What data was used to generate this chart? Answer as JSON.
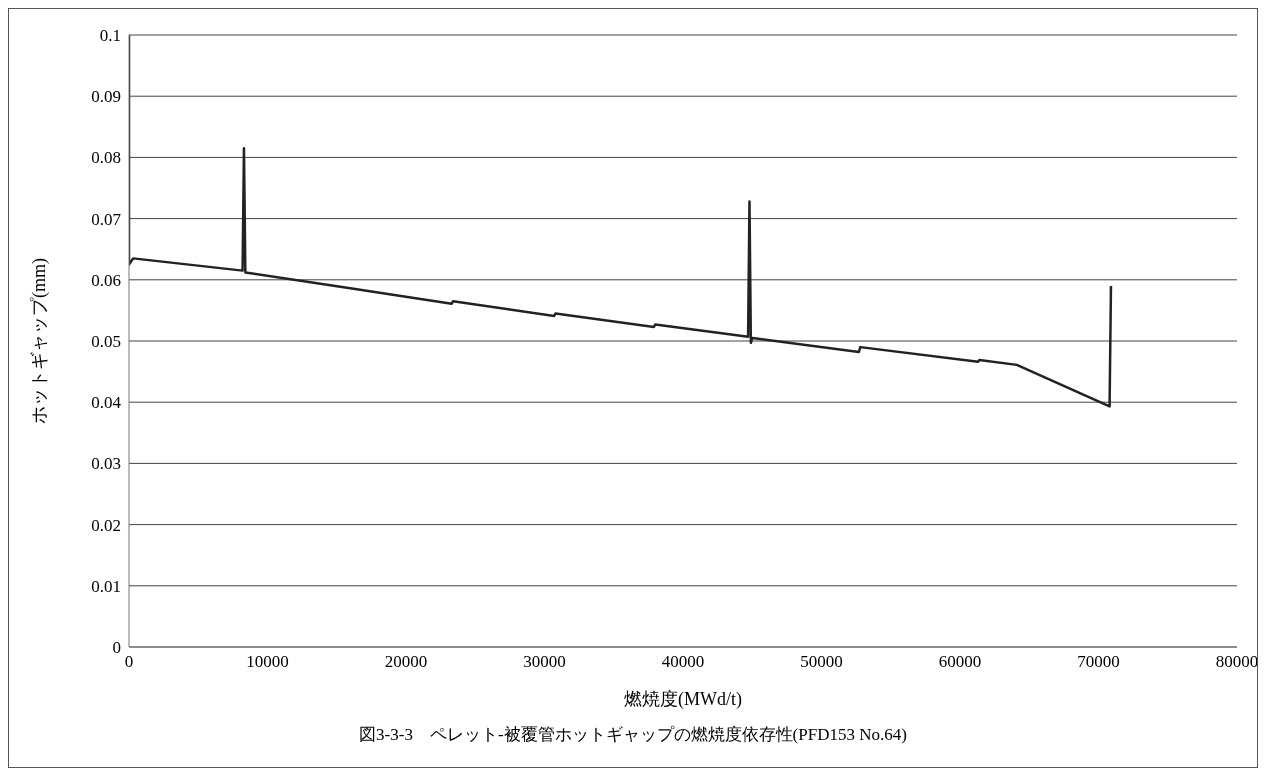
{
  "chart_data": {
    "type": "line",
    "xlabel": "燃焼度(MWd/t)",
    "ylabel": "ホットギャップ(mm)",
    "annotations": [
      "図3-3-3　ペレット-被覆管ホットギャップの燃焼度依存性(PFD153 No.64)"
    ],
    "x": [
      0,
      0,
      300,
      8200,
      8300,
      8400,
      15500,
      23300,
      23400,
      30700,
      30800,
      37900,
      38000,
      44700,
      44800,
      44900,
      45000,
      52700,
      52800,
      61300,
      61400,
      64100,
      70800,
      70900
    ],
    "series": [
      {
        "color": "#222222",
        "values": [
          0.1,
          0.0625,
          0.0635,
          0.0615,
          0.0815,
          0.0612,
          0.0588,
          0.0561,
          0.0565,
          0.0541,
          0.0545,
          0.0523,
          0.0527,
          0.0507,
          0.0728,
          0.0497,
          0.0505,
          0.0482,
          0.049,
          0.0466,
          0.0469,
          0.0461,
          0.0393,
          0.059
        ]
      }
    ],
    "xlim": [
      0,
      80000
    ],
    "xticks": [
      0,
      10000,
      20000,
      30000,
      40000,
      50000,
      60000,
      70000,
      80000
    ],
    "ylim": [
      0,
      0.1
    ],
    "yticks": [
      0,
      0.01,
      0.02,
      0.03,
      0.04,
      0.05,
      0.06,
      0.07,
      0.08,
      0.09,
      0.1
    ],
    "grid": "y",
    "legend": false,
    "marker": "none",
    "line_style": "solid"
  }
}
